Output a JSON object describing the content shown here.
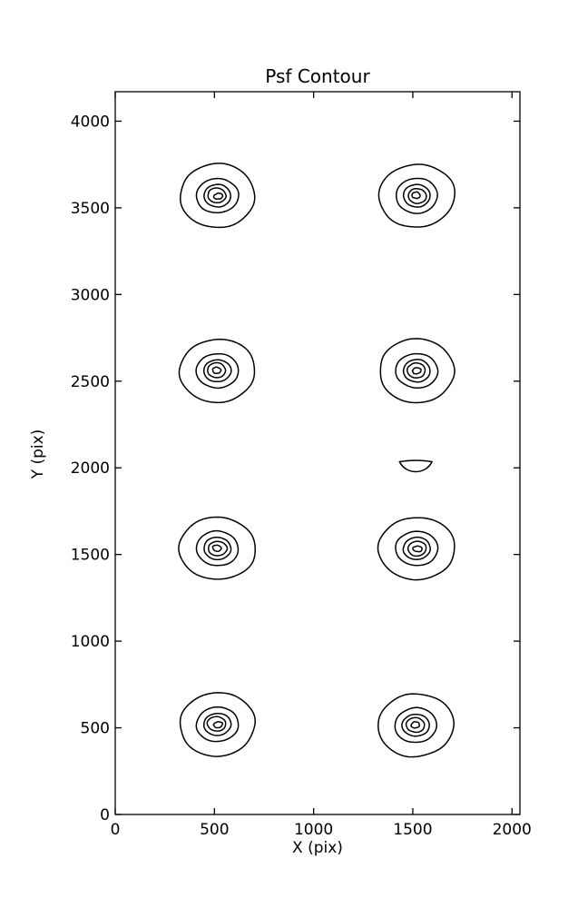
{
  "window": {
    "background": "#ffffff",
    "foreground": "#000000"
  },
  "chart_data": {
    "type": "contour",
    "title": "Psf Contour",
    "xlabel": "X (pix)",
    "ylabel": "Y (pix)",
    "xlim": [
      0,
      2040
    ],
    "ylim": [
      0,
      4170
    ],
    "xticks": [
      0,
      500,
      1000,
      1500,
      2000
    ],
    "yticks": [
      0,
      500,
      1000,
      1500,
      2000,
      2500,
      3000,
      3500,
      4000
    ],
    "grid": false,
    "legend": "none",
    "contour_color": "#000000",
    "background": "#ffffff",
    "n_levels": 5,
    "level_radii": [
      [
        190,
        182
      ],
      [
        105,
        100
      ],
      [
        68,
        64
      ],
      [
        46,
        42
      ],
      [
        22,
        17
      ]
    ],
    "spots": [
      {
        "x": 515,
        "y": 3570
      },
      {
        "x": 1520,
        "y": 3570
      },
      {
        "x": 515,
        "y": 2560
      },
      {
        "x": 1520,
        "y": 2560
      },
      {
        "x": 515,
        "y": 1535
      },
      {
        "x": 1520,
        "y": 1535
      },
      {
        "x": 515,
        "y": 520
      },
      {
        "x": 1515,
        "y": 515
      }
    ],
    "partial_contour": {
      "x": 1515,
      "y": 2025,
      "half_width": 82,
      "depth": 58,
      "shape": "flat-top-bowl"
    }
  }
}
